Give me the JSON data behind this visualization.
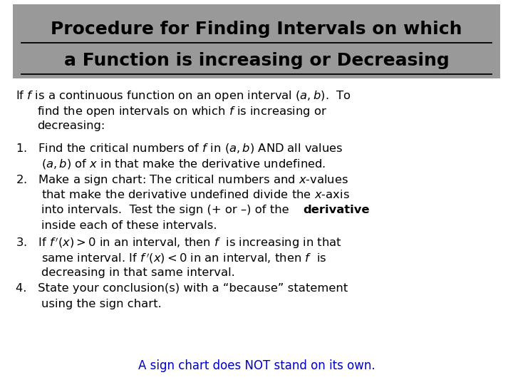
{
  "title_line1": "Procedure for Finding Intervals on which",
  "title_line2": "a Function is increasing or Decreasing",
  "title_bg_color": "#999999",
  "title_text_color": "#000000",
  "body_bg_color": "#ffffff",
  "footer_text": "A sign chart does NOT stand on its own.",
  "footer_color": "#0000cc"
}
